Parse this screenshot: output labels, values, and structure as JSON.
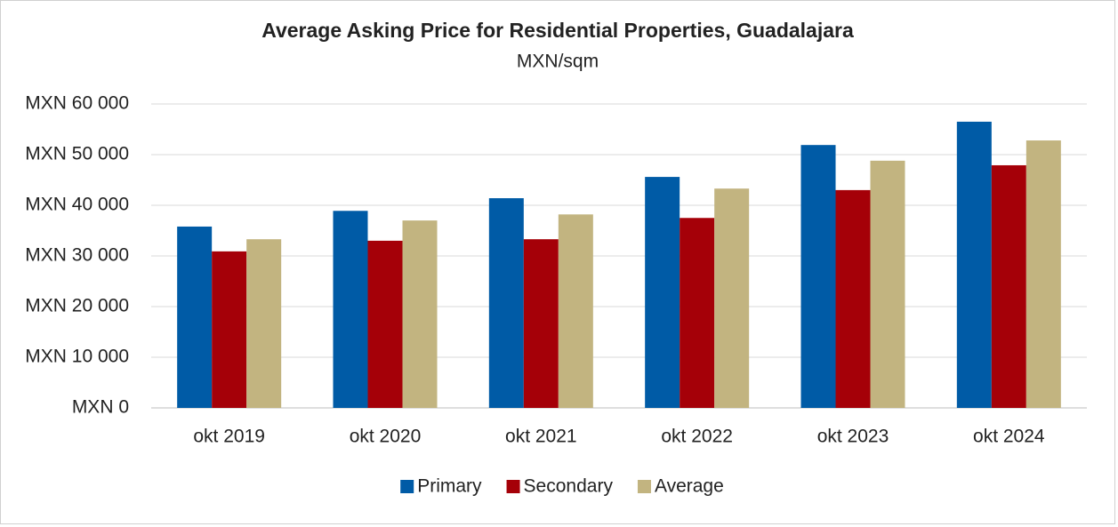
{
  "chart_data": {
    "type": "bar",
    "title": "Average Asking Price for Residential Properties, Guadalajara",
    "subtitle": "MXN/sqm",
    "categories": [
      "okt 2019",
      "okt 2020",
      "okt 2021",
      "okt 2022",
      "okt 2023",
      "okt 2024"
    ],
    "series": [
      {
        "name": "Primary",
        "color": "#005ba6",
        "values": [
          35800,
          38900,
          41400,
          45600,
          51900,
          56500
        ]
      },
      {
        "name": "Secondary",
        "color": "#a50008",
        "values": [
          30900,
          33000,
          33300,
          37500,
          43000,
          47900
        ]
      },
      {
        "name": "Average",
        "color": "#c2b480",
        "values": [
          33300,
          37000,
          38200,
          43300,
          48800,
          52800
        ]
      }
    ],
    "ylim": [
      0,
      60000
    ],
    "yticks": [
      {
        "value": 0,
        "label": "MXN 0"
      },
      {
        "value": 10000,
        "label": "MXN 10 000"
      },
      {
        "value": 20000,
        "label": "MXN 20 000"
      },
      {
        "value": 30000,
        "label": "MXN 30 000"
      },
      {
        "value": 40000,
        "label": "MXN 40 000"
      },
      {
        "value": 50000,
        "label": "MXN 50 000"
      },
      {
        "value": 60000,
        "label": "MXN 60 000"
      }
    ],
    "grid": true,
    "legend": "bottom"
  }
}
